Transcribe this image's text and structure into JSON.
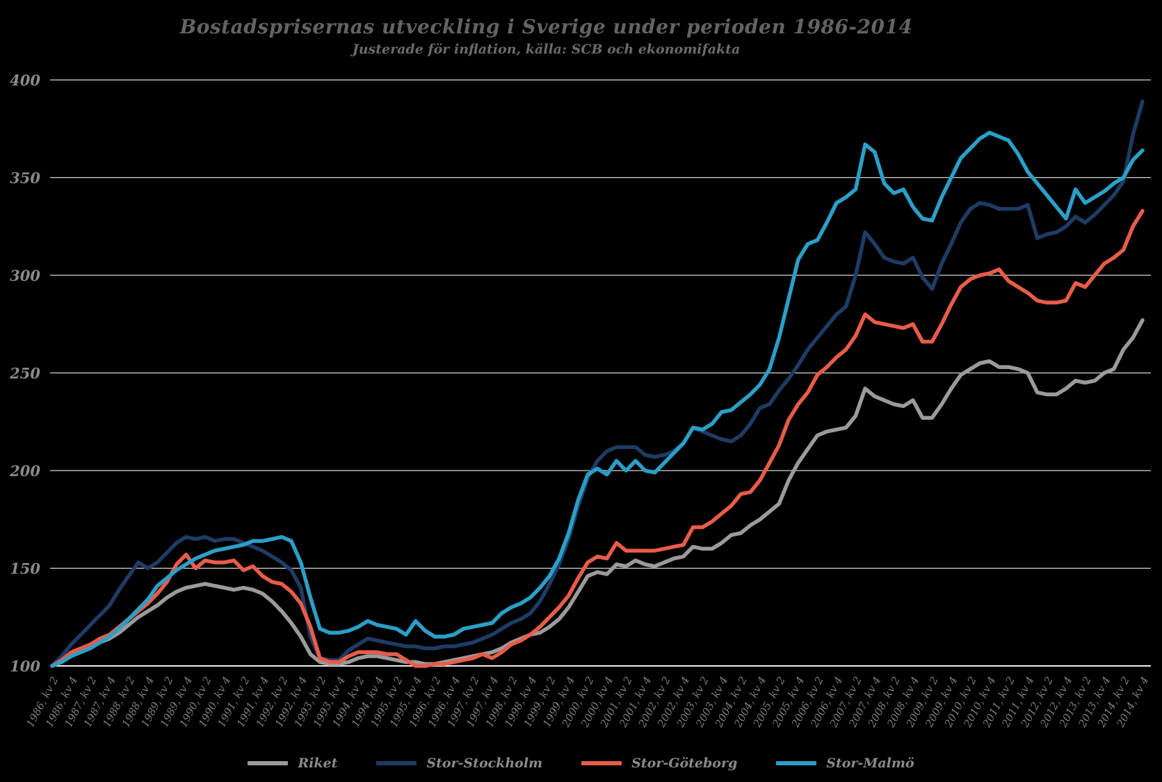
{
  "header": {
    "title": "Bostadsprisernas utveckling i Sverige under perioden 1986-2014",
    "subtitle": "Justerade för inflation, källa: SCB och ekonomifakta"
  },
  "colors": {
    "background": "#000000",
    "gridline": "#d8d8d8",
    "baseline": "#efefef",
    "title_text": "#636363",
    "axis_text": "#8a8a8a",
    "legend_text": "#8a8a8a"
  },
  "chart_data": {
    "type": "line",
    "title": "Bostadsprisernas utveckling i Sverige under perioden 1986-2014",
    "subtitle": "Justerade för inflation, källa: SCB och ekonomifakta",
    "xlabel": "",
    "ylabel": "",
    "ylim": [
      100,
      400
    ],
    "y_ticks": [
      100,
      150,
      200,
      250,
      300,
      350,
      400
    ],
    "grid": true,
    "legend_position": "bottom",
    "x_start": "1986, kv 2",
    "x_end": "2014, kv 4",
    "points_per_series": 115,
    "x_tick_every_points": 2,
    "x_tick_labels": [
      "1986, kv 2",
      "1986, kv 4",
      "1987, kv 2",
      "1987, kv 4",
      "1988, kv 2",
      "1988, kv 4",
      "1989, kv 2",
      "1989, kv 4",
      "1990, kv 2",
      "1990, kv 4",
      "1991, kv 2",
      "1991, kv 4",
      "1992, kv 2",
      "1992, kv 4",
      "1993, kv 2",
      "1993, kv 4",
      "1994, kv 2",
      "1994, kv 4",
      "1995, kv 2",
      "1995, kv 4",
      "1996, kv 2",
      "1996, kv 4",
      "1997, kv 2",
      "1997, kv 4",
      "1998, kv 2",
      "1998, kv 4",
      "1999, kv 2",
      "1999, kv 4",
      "2000, kv 2",
      "2000, kv 4",
      "2001, kv 2",
      "2001, kv 4",
      "2002, kv 2",
      "2002, kv 4",
      "2003, kv 2",
      "2003, kv 4",
      "2004, kv 2",
      "2004, kv 4",
      "2005, kv 2",
      "2005, kv 4",
      "2006, kv 2",
      "2006, kv 4",
      "2007, kv 2",
      "2007, kv 4",
      "2008, kv 2",
      "2008, kv 4",
      "2009, kv 2",
      "2009, kv 4",
      "2010, kv 2",
      "2010, kv 4",
      "2011, kv 2",
      "2011, kv 4",
      "2012, kv 2",
      "2012, kv 4",
      "2013, kv 2",
      "2013, kv 4",
      "2014, kv 2",
      "2014, kv 4"
    ],
    "series": [
      {
        "name": "Riket",
        "color": "#9b9b9b",
        "values": [
          100,
          103,
          106,
          108,
          110,
          112,
          114,
          117,
          121,
          125,
          128,
          131,
          135,
          138,
          140,
          141,
          142,
          141,
          140,
          139,
          140,
          139,
          137,
          133,
          128,
          122,
          115,
          106,
          102,
          101,
          101,
          102,
          104,
          105,
          105,
          104,
          103,
          102,
          102,
          101,
          101,
          102,
          103,
          104,
          105,
          106,
          107,
          109,
          112,
          114,
          116,
          117,
          120,
          124,
          130,
          138,
          146,
          148,
          147,
          152,
          151,
          154,
          152,
          151,
          153,
          155,
          156,
          161,
          160,
          160,
          163,
          167,
          168,
          172,
          175,
          179,
          183,
          195,
          204,
          211,
          218,
          220,
          221,
          222,
          228,
          242,
          238,
          236,
          234,
          233,
          236,
          227,
          227,
          234,
          242,
          249,
          252,
          255,
          256,
          253,
          253,
          252,
          250,
          240,
          239,
          239,
          242,
          246,
          245,
          246,
          250,
          252,
          262,
          268,
          277
        ]
      },
      {
        "name": "Stor-Stockholm",
        "color": "#1e3c64",
        "values": [
          100,
          105,
          111,
          116,
          121,
          126,
          131,
          139,
          146,
          153,
          150,
          153,
          158,
          163,
          166,
          165,
          166,
          164,
          165,
          165,
          163,
          161,
          159,
          156,
          153,
          149,
          140,
          115,
          104,
          103,
          103,
          108,
          111,
          114,
          113,
          112,
          111,
          110,
          110,
          109,
          109,
          110,
          110,
          111,
          112,
          114,
          116,
          119,
          122,
          124,
          127,
          133,
          142,
          152,
          165,
          182,
          196,
          205,
          210,
          212,
          212,
          212,
          208,
          207,
          208,
          210,
          214,
          222,
          220,
          218,
          216,
          215,
          218,
          224,
          232,
          234,
          241,
          247,
          254,
          262,
          268,
          274,
          280,
          284,
          300,
          322,
          316,
          309,
          307,
          306,
          309,
          299,
          293,
          306,
          316,
          327,
          334,
          337,
          336,
          334,
          334,
          334,
          336,
          319,
          321,
          322,
          325,
          330,
          327,
          331,
          336,
          341,
          348,
          372,
          389
        ]
      },
      {
        "name": "Stor-Göteborg",
        "color": "#e85c49",
        "values": [
          100,
          103,
          107,
          109,
          111,
          114,
          116,
          120,
          124,
          128,
          132,
          137,
          143,
          152,
          157,
          150,
          154,
          153,
          153,
          154,
          149,
          151,
          146,
          143,
          142,
          138,
          132,
          120,
          104,
          102,
          102,
          105,
          107,
          107,
          107,
          106,
          106,
          103,
          100,
          100,
          101,
          101,
          102,
          103,
          104,
          106,
          104,
          107,
          111,
          113,
          116,
          120,
          125,
          130,
          136,
          145,
          153,
          156,
          155,
          163,
          159,
          159,
          159,
          159,
          160,
          161,
          162,
          171,
          171,
          174,
          178,
          182,
          188,
          189,
          195,
          204,
          213,
          226,
          234,
          240,
          249,
          253,
          258,
          262,
          269,
          280,
          276,
          275,
          274,
          273,
          275,
          266,
          266,
          275,
          285,
          294,
          298,
          300,
          301,
          303,
          297,
          294,
          291,
          287,
          286,
          286,
          287,
          296,
          294,
          300,
          306,
          309,
          313,
          325,
          333
        ]
      },
      {
        "name": "Stor-Malmö",
        "color": "#2b9fc7",
        "values": [
          100,
          102,
          105,
          107,
          109,
          112,
          115,
          119,
          124,
          129,
          134,
          141,
          145,
          149,
          152,
          155,
          157,
          159,
          160,
          161,
          162,
          164,
          164,
          165,
          166,
          164,
          153,
          135,
          119,
          117,
          117,
          118,
          120,
          123,
          121,
          120,
          119,
          116,
          123,
          118,
          115,
          115,
          116,
          119,
          120,
          121,
          122,
          127,
          130,
          132,
          135,
          140,
          146,
          155,
          168,
          185,
          198,
          201,
          198,
          205,
          200,
          205,
          200,
          199,
          204,
          209,
          214,
          222,
          221,
          224,
          230,
          231,
          235,
          239,
          244,
          252,
          268,
          288,
          308,
          316,
          318,
          327,
          337,
          340,
          344,
          367,
          363,
          347,
          342,
          344,
          335,
          329,
          328,
          340,
          350,
          360,
          365,
          370,
          373,
          371,
          369,
          362,
          353,
          347,
          341,
          335,
          329,
          344,
          337,
          340,
          343,
          347,
          350,
          359,
          364
        ]
      }
    ]
  },
  "legend": {
    "items": [
      {
        "label": "Riket"
      },
      {
        "label": "Stor-Stockholm"
      },
      {
        "label": "Stor-Göteborg"
      },
      {
        "label": "Stor-Malmö"
      }
    ]
  }
}
